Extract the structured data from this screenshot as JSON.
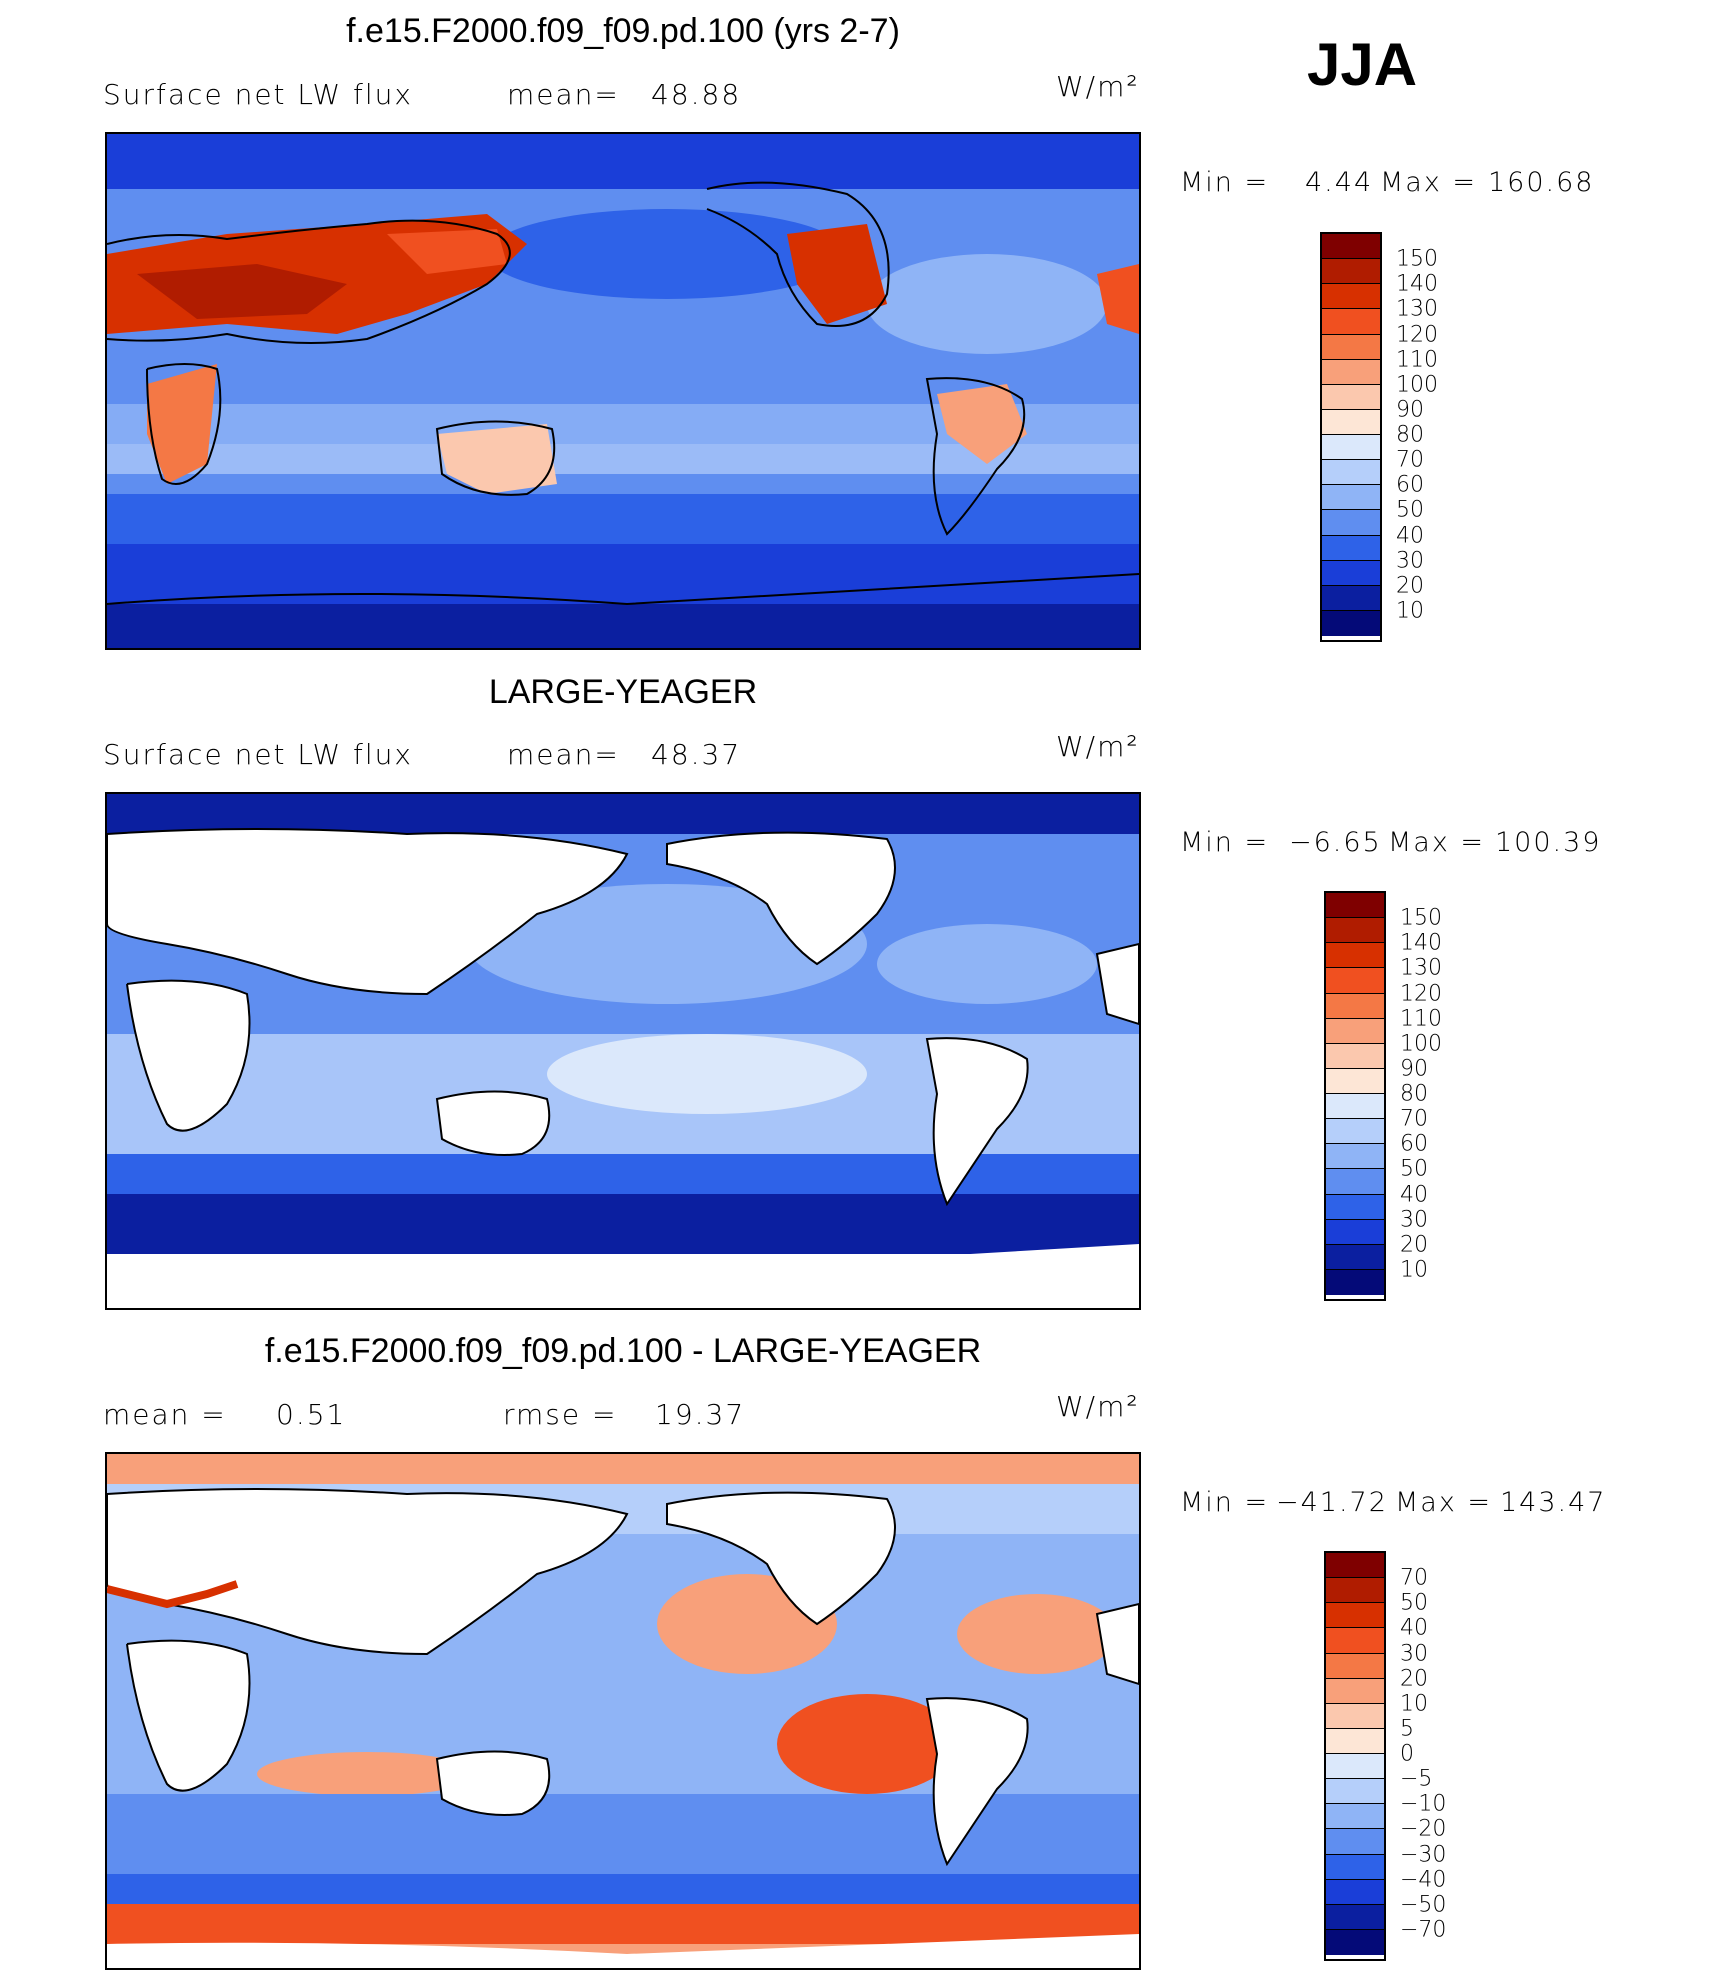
{
  "season": "JJA",
  "panels": [
    {
      "title": "f.e15.F2000.f09_f09.pd.100 (yrs 2-7)",
      "left_label": "Surface net LW flux",
      "stat_label": "mean=",
      "stat_value": "48.88",
      "units": "W/m²",
      "min_label": "Min =",
      "min_value": "4.44",
      "max_label": "Max =",
      "max_value": "160.68",
      "colorbar": [
        "150",
        "140",
        "130",
        "120",
        "110",
        "100",
        "90",
        "80",
        "70",
        "60",
        "50",
        "40",
        "30",
        "20",
        "10"
      ],
      "land": "filled"
    },
    {
      "title": "LARGE-YEAGER",
      "left_label": "Surface net LW flux",
      "stat_label": "mean=",
      "stat_value": "48.37",
      "units": "W/m²",
      "min_label": "Min =",
      "min_value": "−6.65",
      "max_label": "Max =",
      "max_value": "100.39",
      "colorbar": [
        "150",
        "140",
        "130",
        "120",
        "110",
        "100",
        "90",
        "80",
        "70",
        "60",
        "50",
        "40",
        "30",
        "20",
        "10"
      ],
      "land": "masked"
    },
    {
      "title": "f.e15.F2000.f09_f09.pd.100 - LARGE-YEAGER",
      "left_label": "mean =",
      "left_value": "0.51",
      "stat_label": "rmse =",
      "stat_value": "19.37",
      "units": "W/m²",
      "min_label": "Min =",
      "min_value": "−41.72",
      "max_label": "Max =",
      "max_value": "143.47",
      "colorbar": [
        "70",
        "50",
        "40",
        "30",
        "20",
        "10",
        "5",
        "0",
        "−5",
        "−10",
        "−20",
        "−30",
        "−40",
        "−50",
        "−70"
      ],
      "land": "masked"
    }
  ],
  "colors": {
    "palette": [
      "#7f0000",
      "#b01c00",
      "#d73000",
      "#f05020",
      "#f47845",
      "#f8a07a",
      "#fbc8ae",
      "#fde6d6",
      "#dbe8fb",
      "#b5cffa",
      "#8fb4f6",
      "#5f8ef0",
      "#2e62e8",
      "#1a3ed8",
      "#0b1fa0",
      "#040a78"
    ],
    "land": "#ffffff"
  }
}
